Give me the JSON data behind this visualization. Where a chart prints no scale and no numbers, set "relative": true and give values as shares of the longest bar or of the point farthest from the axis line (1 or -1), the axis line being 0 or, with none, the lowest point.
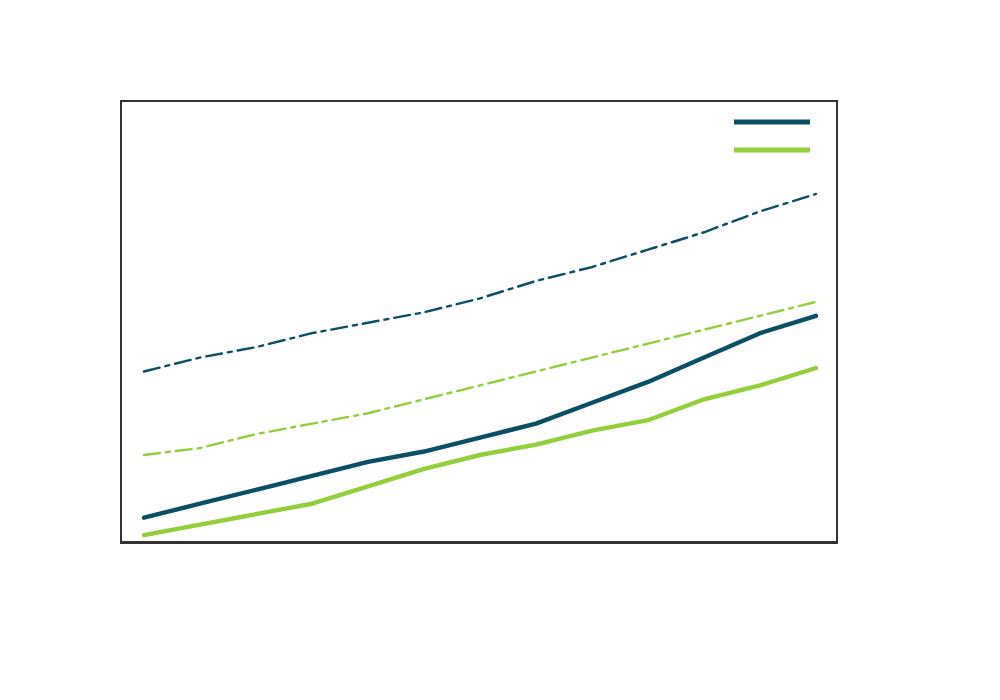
{
  "chart_data": {
    "type": "line",
    "relative": true,
    "grid": false,
    "marker": "none",
    "categories": [
      null,
      null,
      null,
      null,
      null,
      null,
      null,
      null,
      null,
      null,
      null,
      null,
      null
    ],
    "series": [
      {
        "color": "#0a4f66",
        "line_style": "solid",
        "values": [
          0.07,
          0.11,
          0.15,
          0.19,
          0.23,
          0.26,
          0.3,
          0.34,
          0.4,
          0.46,
          0.53,
          0.6,
          0.65
        ]
      },
      {
        "color": "#93cf3a",
        "line_style": "solid",
        "values": [
          0.02,
          0.05,
          0.08,
          0.11,
          0.16,
          0.21,
          0.25,
          0.28,
          0.32,
          0.35,
          0.41,
          0.45,
          0.5
        ]
      },
      {
        "color": "#0a4f66",
        "line_style": "dashed",
        "values": [
          0.49,
          0.53,
          0.56,
          0.6,
          0.63,
          0.66,
          0.7,
          0.75,
          0.79,
          0.84,
          0.89,
          0.95,
          1
        ]
      },
      {
        "color": "#93cf3a",
        "line_style": "dashed",
        "values": [
          0.25,
          0.27,
          0.31,
          0.34,
          0.37,
          0.41,
          0.45,
          0.49,
          0.53,
          0.57,
          0.61,
          0.65,
          0.69
        ]
      }
    ]
  }
}
